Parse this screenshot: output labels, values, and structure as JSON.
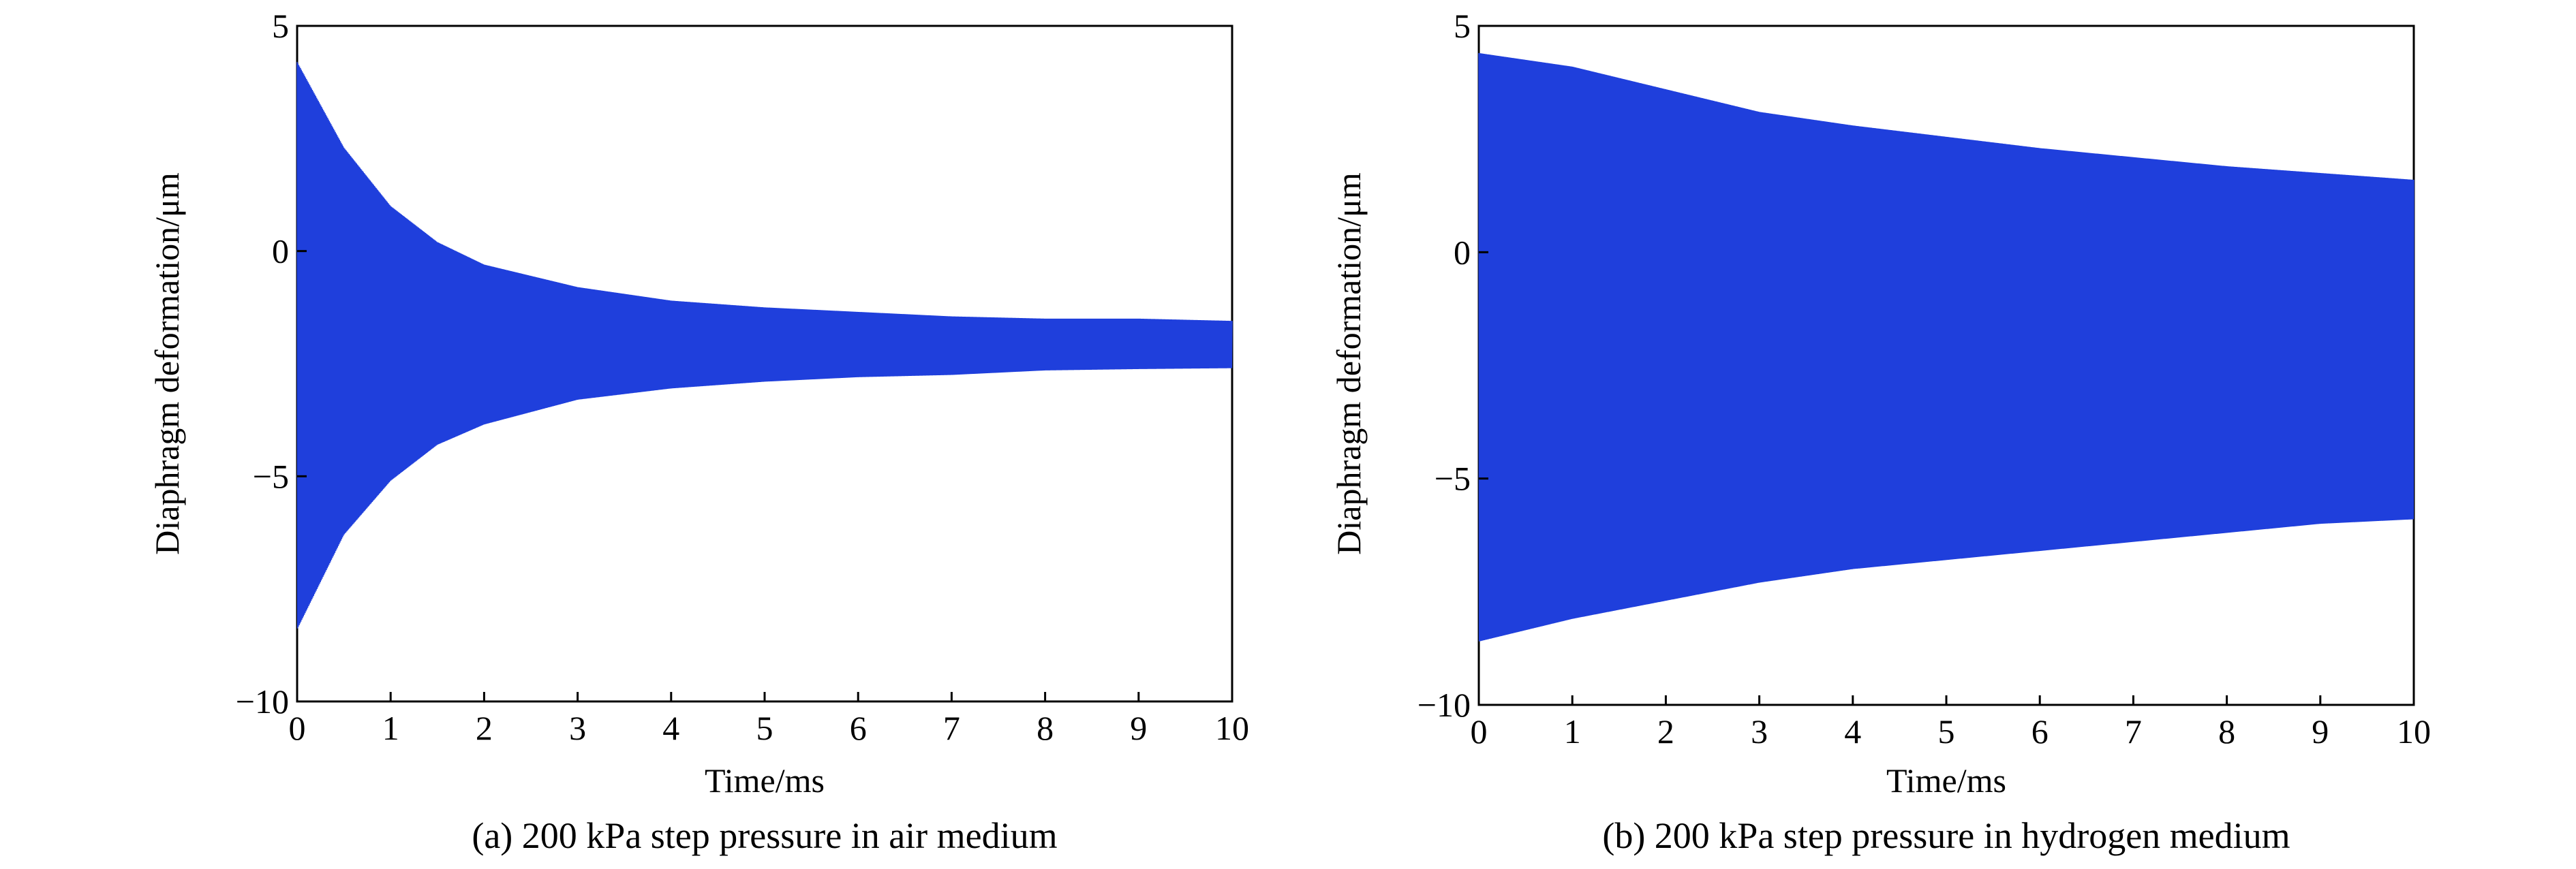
{
  "figure": {
    "series_color": "#1f3fdc",
    "panels": [
      {
        "caption": "(a) 200 kPa step pressure in air medium",
        "medium": "air"
      },
      {
        "caption": "(b) 200 kPa step pressure in hydrogen medium",
        "medium": "hydrogen"
      }
    ]
  },
  "chart_data": [
    {
      "type": "line",
      "title": "",
      "xlabel": "Time/ms",
      "ylabel": "Diaphragm deformation/μm",
      "xlim": [
        0,
        10
      ],
      "ylim": [
        -10,
        5
      ],
      "xticks": [
        0,
        1,
        2,
        3,
        4,
        5,
        6,
        7,
        8,
        9,
        10
      ],
      "yticks": [
        5,
        0,
        -5,
        -10
      ],
      "ytick_labels": [
        "5",
        "0",
        "−5",
        "−10"
      ],
      "grid": false,
      "series": [
        {
          "x": [
            0,
            0.5,
            1,
            1.5,
            2,
            3,
            4,
            5,
            6,
            7,
            8,
            9,
            10
          ],
          "upper_envelope": [
            4.2,
            2.3,
            1.0,
            0.2,
            -0.3,
            -0.8,
            -1.1,
            -1.25,
            -1.35,
            -1.45,
            -1.5,
            -1.5,
            -1.55
          ],
          "lower_envelope": [
            -8.4,
            -6.3,
            -5.1,
            -4.3,
            -3.85,
            -3.3,
            -3.05,
            -2.9,
            -2.8,
            -2.75,
            -2.65,
            -2.62,
            -2.6
          ],
          "description": "Damped oscillation of diaphragm deformation in air; converges to about -2.1 μm"
        }
      ]
    },
    {
      "type": "line",
      "title": "",
      "xlabel": "Time/ms",
      "ylabel": "Diaphragm deformation/μm",
      "xlim": [
        0,
        10
      ],
      "ylim": [
        -10,
        5
      ],
      "xticks": [
        0,
        1,
        2,
        3,
        4,
        5,
        6,
        7,
        8,
        9,
        10
      ],
      "yticks": [
        5,
        0,
        -5,
        -10
      ],
      "ytick_labels": [
        "5",
        "0",
        "−5",
        "−10"
      ],
      "grid": false,
      "series": [
        {
          "x": [
            0,
            1,
            2,
            3,
            4,
            5,
            6,
            7,
            8,
            9,
            10
          ],
          "upper_envelope": [
            4.4,
            4.1,
            3.6,
            3.1,
            2.8,
            2.55,
            2.3,
            2.1,
            1.9,
            1.75,
            1.6
          ],
          "lower_envelope": [
            -8.6,
            -8.1,
            -7.7,
            -7.3,
            -7.0,
            -6.8,
            -6.6,
            -6.4,
            -6.2,
            -6.0,
            -5.9
          ],
          "description": "Slowly damped oscillation of diaphragm deformation in hydrogen"
        }
      ]
    }
  ]
}
